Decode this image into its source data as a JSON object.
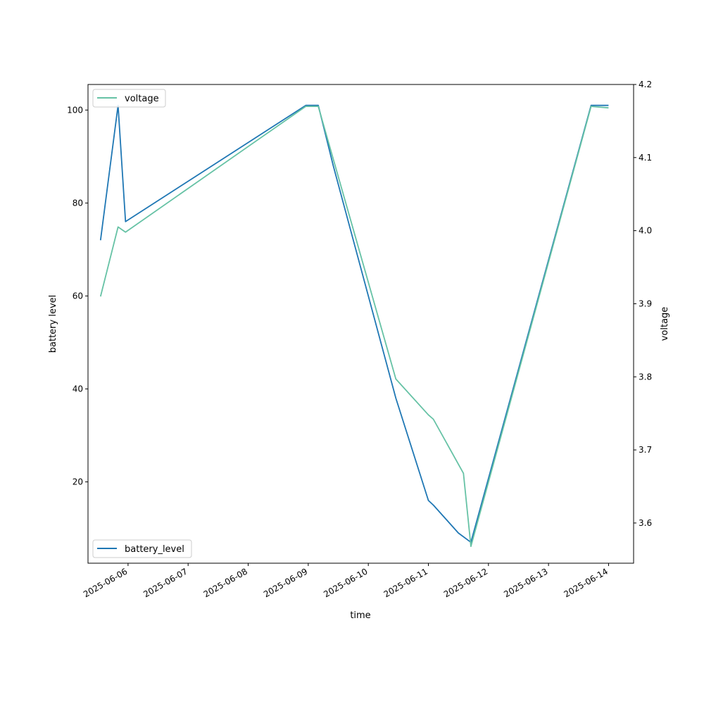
{
  "chart_data": {
    "type": "line",
    "title": "",
    "xlabel": "time",
    "ylabel_left": "battery level",
    "ylabel_right": "voltage",
    "x_ticks": [
      "2025-06-06",
      "2025-06-07",
      "2025-06-08",
      "2025-06-09",
      "2025-06-10",
      "2025-06-11",
      "2025-06-12",
      "2025-06-13",
      "2025-06-14"
    ],
    "x_range": [
      "2025-06-05 08:00",
      "2025-06-14 10:00"
    ],
    "y_left_ticks": [
      20,
      40,
      60,
      80,
      100
    ],
    "y_left_range": [
      2.5,
      105.5
    ],
    "y_right_ticks": [
      3.6,
      3.7,
      3.8,
      3.9,
      4.0,
      4.1,
      4.2
    ],
    "y_right_range": [
      3.545,
      4.2
    ],
    "grid": false,
    "series": [
      {
        "name": "battery_level",
        "axis": "left",
        "color": "#1f77b4",
        "legend_position": "lower-left",
        "points": [
          [
            "2025-06-05 13:00",
            72
          ],
          [
            "2025-06-05 20:00",
            101
          ],
          [
            "2025-06-05 23:00",
            76
          ],
          [
            "2025-06-08 23:00",
            101
          ],
          [
            "2025-06-09 04:00",
            101
          ],
          [
            "2025-06-09 10:00",
            88
          ],
          [
            "2025-06-10 11:00",
            38
          ],
          [
            "2025-06-11 00:00",
            16
          ],
          [
            "2025-06-11 02:00",
            15
          ],
          [
            "2025-06-11 12:00",
            9
          ],
          [
            "2025-06-11 17:00",
            7
          ],
          [
            "2025-06-13 17:00",
            101
          ],
          [
            "2025-06-14 00:00",
            101
          ]
        ]
      },
      {
        "name": "voltage",
        "axis": "right",
        "color": "#66c2a5",
        "legend_position": "upper-left",
        "points": [
          [
            "2025-06-05 13:00",
            3.91
          ],
          [
            "2025-06-05 20:00",
            4.005
          ],
          [
            "2025-06-05 23:00",
            3.998
          ],
          [
            "2025-06-08 23:00",
            4.17
          ],
          [
            "2025-06-09 04:00",
            4.17
          ],
          [
            "2025-06-10 11:00",
            3.797
          ],
          [
            "2025-06-11 00:00",
            3.748
          ],
          [
            "2025-06-11 02:00",
            3.742
          ],
          [
            "2025-06-11 14:00",
            3.668
          ],
          [
            "2025-06-11 17:00",
            3.568
          ],
          [
            "2025-06-13 17:00",
            4.17
          ],
          [
            "2025-06-14 00:00",
            4.168
          ]
        ]
      }
    ]
  }
}
